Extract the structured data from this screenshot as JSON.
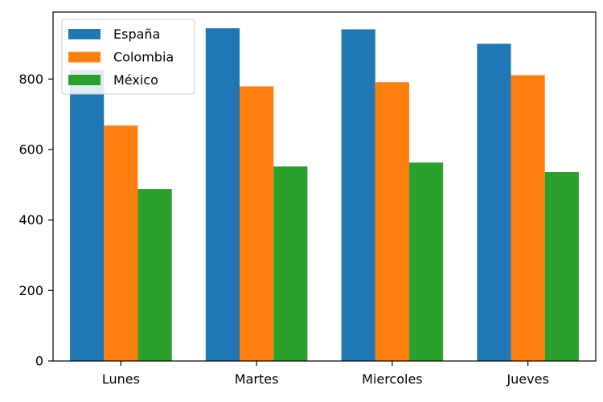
{
  "chart_data": {
    "type": "bar",
    "categories": [
      "Lunes",
      "Martes",
      "Miercoles",
      "Jueves"
    ],
    "series": [
      {
        "name": "España",
        "values": [
          825,
          944,
          941,
          900
        ],
        "color": "#1f77b4"
      },
      {
        "name": "Colombia",
        "values": [
          668,
          779,
          791,
          811
        ],
        "color": "#ff7f0e"
      },
      {
        "name": "México",
        "values": [
          488,
          552,
          563,
          536
        ],
        "color": "#2ca02c"
      }
    ],
    "yticks": [
      0,
      200,
      400,
      600,
      800
    ],
    "ylim": [
      0,
      990
    ],
    "legend_position": "top-left",
    "grid": false
  }
}
